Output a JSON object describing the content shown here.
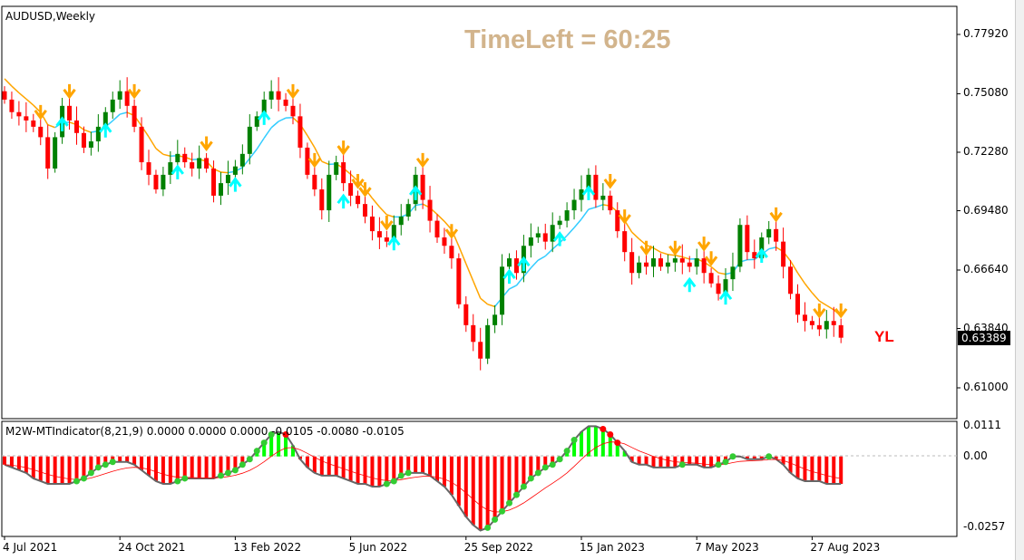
{
  "header": {
    "symbol_label": "AUDUSD,Weekly",
    "time_left": "TimeLeft = 60:25",
    "overlay_text": "YL"
  },
  "price_axis": {
    "labels": [
      "0.77920",
      "0.75080",
      "0.72280",
      "0.69480",
      "0.66640",
      "0.63840",
      "0.61000"
    ],
    "current_price": "0.63389"
  },
  "indicator": {
    "label": "M2W-MTIndicator(8,21,9) 0.0000 0.0000 0.0000 -0.0105 -0.0080 -0.0105",
    "axis_labels": [
      "0.0111",
      "0.00",
      "-0.0257"
    ]
  },
  "time_axis": {
    "labels": [
      "4 Jul 2021",
      "24 Oct 2021",
      "13 Feb 2022",
      "5 Jun 2022",
      "25 Sep 2022",
      "15 Jan 2023",
      "7 May 2023",
      "27 Aug 2023"
    ]
  },
  "colors": {
    "bull": "#008000",
    "bear": "#ff0000",
    "ma_down": "#ffa500",
    "ma_up": "#33ccff",
    "arrow_down": "#ffa500",
    "arrow_up": "#00ffff",
    "hist_pos": "#00ff00",
    "hist_neg": "#ff0000",
    "signal": "#ff0000",
    "curve": "#666666",
    "dot_up": "#33cc33",
    "dot_down": "#ff0000"
  },
  "chart_data": {
    "type": "candlestick",
    "timeframe": "Weekly",
    "ylim": [
      0.61,
      0.7792
    ],
    "closes": [
      0.748,
      0.742,
      0.74,
      0.738,
      0.735,
      0.73,
      0.715,
      0.73,
      0.745,
      0.738,
      0.732,
      0.725,
      0.728,
      0.735,
      0.742,
      0.748,
      0.752,
      0.745,
      0.735,
      0.718,
      0.712,
      0.705,
      0.712,
      0.718,
      0.722,
      0.718,
      0.715,
      0.72,
      0.715,
      0.702,
      0.708,
      0.712,
      0.716,
      0.722,
      0.735,
      0.74,
      0.748,
      0.752,
      0.748,
      0.745,
      0.74,
      0.725,
      0.712,
      0.705,
      0.695,
      0.712,
      0.718,
      0.708,
      0.702,
      0.698,
      0.692,
      0.685,
      0.682,
      0.68,
      0.688,
      0.692,
      0.698,
      0.712,
      0.7,
      0.69,
      0.682,
      0.678,
      0.672,
      0.65,
      0.64,
      0.632,
      0.624,
      0.64,
      0.645,
      0.668,
      0.672,
      0.665,
      0.678,
      0.682,
      0.684,
      0.68,
      0.688,
      0.69,
      0.695,
      0.7,
      0.705,
      0.712,
      0.7,
      0.702,
      0.695,
      0.685,
      0.675,
      0.665,
      0.67,
      0.668,
      0.672,
      0.668,
      0.67,
      0.672,
      0.67,
      0.668,
      0.672,
      0.665,
      0.66,
      0.655,
      0.662,
      0.668,
      0.688,
      0.675,
      0.672,
      0.682,
      0.686,
      0.68,
      0.668,
      0.655,
      0.645,
      0.642,
      0.64,
      0.638,
      0.642,
      0.64,
      0.634
    ],
    "down_arrow_bars": [
      5,
      9,
      18,
      28,
      40,
      43,
      47,
      49,
      50,
      53,
      58,
      62,
      84,
      86,
      89,
      93,
      97,
      98,
      107,
      113,
      116
    ],
    "up_arrow_bars": [
      8,
      14,
      24,
      32,
      36,
      47,
      54,
      57,
      70,
      72,
      77,
      81,
      95,
      100,
      105
    ],
    "histogram": [
      -0.003,
      -0.004,
      -0.005,
      -0.006,
      -0.008,
      -0.009,
      -0.01,
      -0.01,
      -0.01,
      -0.01,
      -0.009,
      -0.008,
      -0.006,
      -0.004,
      -0.003,
      -0.002,
      -0.002,
      -0.002,
      -0.003,
      -0.005,
      -0.007,
      -0.009,
      -0.01,
      -0.01,
      -0.009,
      -0.008,
      -0.008,
      -0.008,
      -0.008,
      -0.008,
      -0.007,
      -0.006,
      -0.005,
      -0.003,
      -0.001,
      0.002,
      0.005,
      0.008,
      0.009,
      0.008,
      0.004,
      -0.001,
      -0.004,
      -0.006,
      -0.007,
      -0.007,
      -0.007,
      -0.008,
      -0.009,
      -0.01,
      -0.01,
      -0.011,
      -0.011,
      -0.01,
      -0.009,
      -0.007,
      -0.006,
      -0.006,
      -0.006,
      -0.007,
      -0.009,
      -0.011,
      -0.014,
      -0.018,
      -0.022,
      -0.025,
      -0.027,
      -0.026,
      -0.023,
      -0.02,
      -0.017,
      -0.014,
      -0.011,
      -0.008,
      -0.006,
      -0.004,
      -0.003,
      -0.001,
      0.002,
      0.006,
      0.009,
      0.011,
      0.011,
      0.01,
      0.008,
      0.005,
      0.002,
      -0.002,
      -0.003,
      -0.003,
      -0.004,
      -0.004,
      -0.004,
      -0.004,
      -0.003,
      -0.003,
      -0.003,
      -0.004,
      -0.004,
      -0.003,
      -0.002,
      0.0,
      0.0,
      -0.001,
      -0.001,
      -0.001,
      0.0,
      -0.001,
      -0.003,
      -0.006,
      -0.008,
      -0.009,
      -0.009,
      -0.009,
      -0.01,
      -0.01,
      -0.01
    ],
    "histogram_ylim": [
      -0.0285,
      0.0118
    ]
  }
}
